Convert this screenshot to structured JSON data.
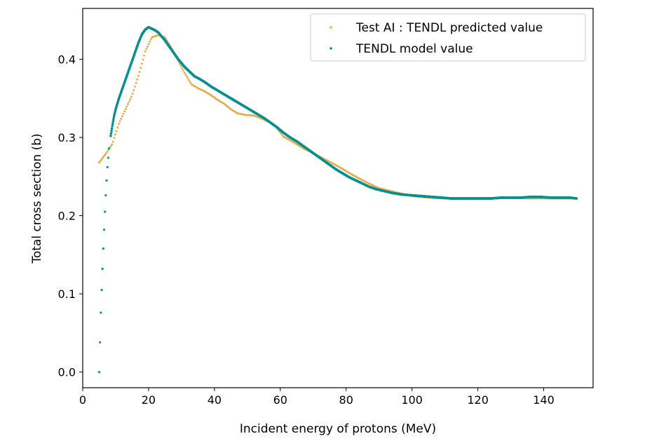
{
  "chart_data": {
    "type": "scatter",
    "title": "",
    "xlabel": "Incident energy of protons (MeV)",
    "ylabel": "Total cross section (b)",
    "xlim": [
      0,
      155
    ],
    "ylim": [
      -0.02,
      0.465
    ],
    "xticks": [
      0,
      20,
      40,
      60,
      80,
      100,
      120,
      140
    ],
    "yticks": [
      0.0,
      0.1,
      0.2,
      0.3,
      0.4
    ],
    "xtick_labels": [
      "0",
      "20",
      "40",
      "60",
      "80",
      "100",
      "120",
      "140"
    ],
    "ytick_labels": [
      "0.0",
      "0.1",
      "0.2",
      "0.3",
      "0.4"
    ],
    "grid": false,
    "legend_position": "top-right",
    "series": [
      {
        "name": "Test AI : TENDL predicted value",
        "color": "#e0b050",
        "marker": "dot",
        "x": [
          5,
          7,
          9,
          11,
          13,
          15,
          17,
          19,
          21,
          23,
          25,
          27,
          29,
          31,
          33,
          35,
          37,
          39,
          41,
          43,
          45,
          47,
          49,
          52,
          55,
          58,
          61,
          64,
          67,
          70,
          74,
          78,
          82,
          86,
          90,
          95,
          100,
          105,
          110,
          115,
          120,
          125,
          130,
          135,
          140,
          145,
          150
        ],
        "y": [
          0.268,
          0.279,
          0.292,
          0.318,
          0.336,
          0.354,
          0.38,
          0.41,
          0.428,
          0.431,
          0.428,
          0.414,
          0.398,
          0.382,
          0.368,
          0.363,
          0.359,
          0.354,
          0.348,
          0.343,
          0.336,
          0.331,
          0.329,
          0.328,
          0.323,
          0.317,
          0.301,
          0.294,
          0.286,
          0.28,
          0.271,
          0.262,
          0.252,
          0.243,
          0.235,
          0.23,
          0.225,
          0.223,
          0.222,
          0.222,
          0.222,
          0.222,
          0.223,
          0.222,
          0.222,
          0.222,
          0.222
        ]
      },
      {
        "name": "TENDL model value",
        "color": "#0a8f8f",
        "marker": "dot",
        "x": [
          5,
          5.25,
          5.5,
          5.75,
          6,
          6.25,
          6.5,
          6.75,
          7,
          7.25,
          7.5,
          7.75,
          8,
          8.5,
          9,
          9.5,
          10,
          11,
          12,
          13,
          14,
          15,
          16,
          17,
          18,
          19,
          20,
          21,
          22,
          23,
          24,
          25,
          26,
          27,
          28,
          29,
          30,
          31,
          32,
          33,
          34,
          35,
          37,
          39,
          41,
          43,
          45,
          47,
          49,
          51,
          53,
          55,
          57,
          59,
          61,
          63,
          65,
          67,
          69,
          71,
          73,
          75,
          77,
          79,
          81,
          83,
          85,
          87,
          89,
          91,
          94,
          97,
          100,
          103,
          106,
          109,
          112,
          115,
          118,
          121,
          124,
          127,
          130,
          133,
          136,
          139,
          142,
          145,
          148,
          150
        ],
        "y": [
          0.0,
          0.038,
          0.076,
          0.105,
          0.132,
          0.158,
          0.182,
          0.205,
          0.226,
          0.245,
          0.262,
          0.274,
          0.286,
          0.302,
          0.315,
          0.327,
          0.336,
          0.35,
          0.362,
          0.374,
          0.386,
          0.398,
          0.41,
          0.422,
          0.432,
          0.438,
          0.441,
          0.439,
          0.437,
          0.434,
          0.429,
          0.424,
          0.418,
          0.412,
          0.406,
          0.4,
          0.395,
          0.39,
          0.386,
          0.382,
          0.378,
          0.376,
          0.371,
          0.365,
          0.36,
          0.355,
          0.35,
          0.345,
          0.34,
          0.335,
          0.33,
          0.325,
          0.319,
          0.313,
          0.306,
          0.3,
          0.295,
          0.289,
          0.283,
          0.277,
          0.271,
          0.265,
          0.259,
          0.254,
          0.249,
          0.245,
          0.241,
          0.237,
          0.234,
          0.232,
          0.229,
          0.227,
          0.226,
          0.225,
          0.224,
          0.223,
          0.222,
          0.222,
          0.222,
          0.222,
          0.222,
          0.223,
          0.223,
          0.223,
          0.224,
          0.224,
          0.223,
          0.223,
          0.223,
          0.222
        ]
      }
    ]
  }
}
